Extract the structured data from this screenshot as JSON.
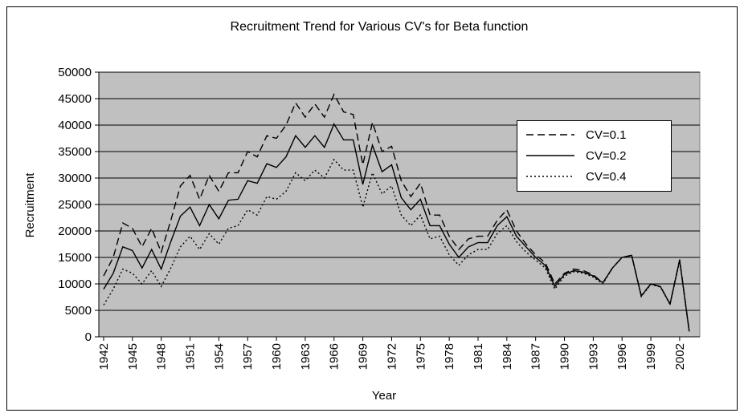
{
  "chart_data": {
    "type": "line",
    "title": "Recruitment Trend for Various CV's for Beta function",
    "x_label": "Year",
    "y_label": "Recruitment",
    "x": [
      1942,
      1943,
      1944,
      1945,
      1946,
      1947,
      1948,
      1949,
      1950,
      1951,
      1952,
      1953,
      1954,
      1955,
      1956,
      1957,
      1958,
      1959,
      1960,
      1961,
      1962,
      1963,
      1964,
      1965,
      1966,
      1967,
      1968,
      1969,
      1970,
      1971,
      1972,
      1973,
      1974,
      1975,
      1976,
      1977,
      1978,
      1979,
      1980,
      1981,
      1982,
      1983,
      1984,
      1985,
      1986,
      1987,
      1988,
      1989,
      1990,
      1991,
      1992,
      1993,
      1994,
      1995,
      1996,
      1997,
      1998,
      1999,
      2000,
      2001,
      2002,
      2003
    ],
    "xlim": [
      1941.5,
      2004.1
    ],
    "xticks": [
      1942,
      1945,
      1948,
      1951,
      1954,
      1957,
      1960,
      1963,
      1966,
      1969,
      1972,
      1975,
      1978,
      1981,
      1984,
      1987,
      1990,
      1993,
      1996,
      1999,
      2002
    ],
    "ylim": [
      0,
      50000
    ],
    "yticks": [
      0,
      5000,
      10000,
      15000,
      20000,
      25000,
      30000,
      35000,
      40000,
      45000,
      50000
    ],
    "grid": true,
    "plot_background": "#c0c0c0",
    "legend_position": "upper right",
    "series": [
      {
        "name": "CV=0.1",
        "color": "#000000",
        "style": "dashed",
        "values": [
          11500,
          15000,
          21500,
          20500,
          17000,
          20500,
          16000,
          22000,
          28500,
          30500,
          26000,
          30500,
          27500,
          31000,
          31000,
          35000,
          34000,
          38000,
          37500,
          40000,
          44200,
          41500,
          44000,
          41500,
          45800,
          42500,
          42000,
          32500,
          40500,
          35000,
          36000,
          29500,
          26500,
          29000,
          23000,
          23000,
          19000,
          16500,
          18500,
          19000,
          19000,
          22000,
          24000,
          20000,
          17500,
          15500,
          14000,
          10000,
          12000,
          12800,
          12500,
          11700,
          10200,
          13000,
          15000,
          15400,
          7800,
          10000,
          9500,
          6200,
          14600,
          1000
        ]
      },
      {
        "name": "CV=0.2",
        "color": "#000000",
        "style": "solid",
        "values": [
          9000,
          12000,
          17000,
          16300,
          13000,
          16500,
          12800,
          18000,
          22800,
          24500,
          21000,
          25000,
          22300,
          25800,
          26000,
          29500,
          29000,
          32700,
          32000,
          34000,
          38000,
          35800,
          38000,
          35800,
          40200,
          37200,
          37200,
          28800,
          36200,
          31200,
          32500,
          26300,
          24000,
          26000,
          21000,
          21000,
          17500,
          15000,
          17000,
          17800,
          17800,
          21000,
          22700,
          19000,
          17000,
          15000,
          13500,
          9500,
          11800,
          12500,
          12200,
          11500,
          10200,
          13000,
          15000,
          15400,
          7700,
          10000,
          9500,
          6200,
          14500,
          1000
        ]
      },
      {
        "name": "CV=0.4",
        "color": "#000000",
        "style": "dotted",
        "values": [
          6000,
          9000,
          12800,
          12000,
          10000,
          12500,
          9500,
          13000,
          17000,
          19000,
          16500,
          19500,
          17500,
          20500,
          21000,
          24000,
          23000,
          26500,
          26000,
          27500,
          31000,
          29500,
          31500,
          30000,
          33500,
          31500,
          31500,
          24500,
          31000,
          27000,
          28500,
          23000,
          21000,
          23000,
          18500,
          19000,
          15500,
          13500,
          15500,
          16500,
          16500,
          19500,
          21000,
          18000,
          16000,
          14500,
          13000,
          9000,
          11500,
          12300,
          12000,
          11300,
          10000,
          13000,
          15000,
          15300,
          7600,
          9900,
          9400,
          6100,
          14400,
          900
        ]
      }
    ]
  }
}
